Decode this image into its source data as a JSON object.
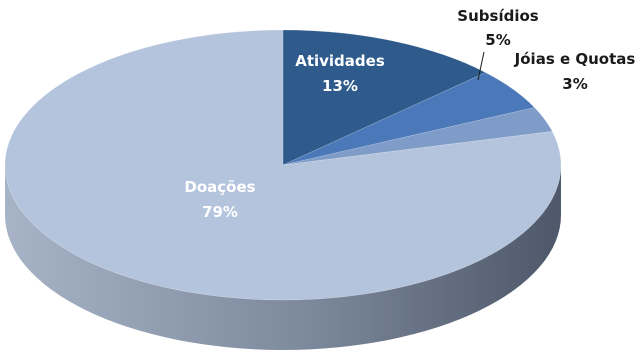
{
  "chart_data": {
    "type": "pie",
    "style": "3d",
    "slices": [
      {
        "label": "Atividades",
        "value": 13,
        "value_label": "13%",
        "color": "#2e5b8c",
        "side_color": "#1f3f63",
        "label_pos": "inside"
      },
      {
        "label": "Subsídios",
        "value": 5,
        "value_label": "5%",
        "color": "#4a78b8",
        "side_color": "#35578a",
        "label_pos": "outside"
      },
      {
        "label": "Jóias e Quotas",
        "value": 3,
        "value_label": "3%",
        "color": "#7f9bc7",
        "side_color": "#5e7596",
        "label_pos": "outside"
      },
      {
        "label": "Doações",
        "value": 79,
        "value_label": "79%",
        "color": "#b5c4dd",
        "side_color": "#7a889e",
        "label_pos": "inside"
      }
    ]
  }
}
